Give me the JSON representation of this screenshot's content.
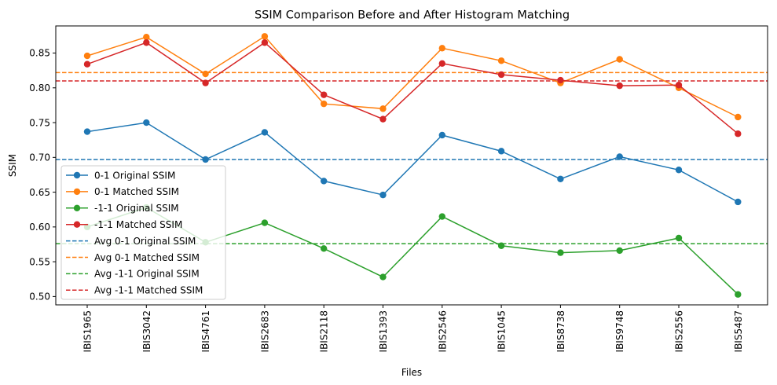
{
  "chart_data": {
    "type": "line",
    "title": "SSIM Comparison Before and After Histogram Matching",
    "xlabel": "Files",
    "ylabel": "SSIM",
    "categories": [
      "IBIS1965",
      "IBIS3042",
      "IBIS4761",
      "IBIS2683",
      "IBIS2118",
      "IBIS1393",
      "IBIS2546",
      "IBIS1045",
      "IBIS8738",
      "IBIS9748",
      "IBIS2556",
      "IBIS5487"
    ],
    "ylim": [
      0.488,
      0.889
    ],
    "yticks": [
      "0.50",
      "0.55",
      "0.60",
      "0.65",
      "0.70",
      "0.75",
      "0.80",
      "0.85"
    ],
    "grid": false,
    "legend_position": "lower-left",
    "series": [
      {
        "name": "0-1 Original SSIM",
        "color": "#1f77b4",
        "values": [
          0.737,
          0.75,
          0.697,
          0.736,
          0.666,
          0.646,
          0.732,
          0.709,
          0.669,
          0.701,
          0.682,
          0.636
        ]
      },
      {
        "name": "0-1 Matched SSIM",
        "color": "#ff7f0e",
        "values": [
          0.846,
          0.873,
          0.82,
          0.874,
          0.777,
          0.77,
          0.857,
          0.839,
          0.807,
          0.841,
          0.8,
          0.758
        ]
      },
      {
        "name": "-1-1 Original SSIM",
        "color": "#2ca02c",
        "values": [
          0.6,
          0.628,
          0.578,
          0.606,
          0.569,
          0.528,
          0.615,
          0.573,
          0.563,
          0.566,
          0.584,
          0.503
        ]
      },
      {
        "name": "-1-1 Matched SSIM",
        "color": "#d62728",
        "values": [
          0.834,
          0.865,
          0.807,
          0.865,
          0.79,
          0.755,
          0.835,
          0.819,
          0.811,
          0.803,
          0.804,
          0.734
        ]
      }
    ],
    "averages": [
      {
        "name": "Avg 0-1 Original SSIM",
        "color": "#1f77b4",
        "value": 0.697
      },
      {
        "name": "Avg 0-1 Matched SSIM",
        "color": "#ff7f0e",
        "value": 0.822
      },
      {
        "name": "Avg -1-1 Original SSIM",
        "color": "#2ca02c",
        "value": 0.576
      },
      {
        "name": "Avg -1-1 Matched SSIM",
        "color": "#d62728",
        "value": 0.81
      }
    ]
  }
}
